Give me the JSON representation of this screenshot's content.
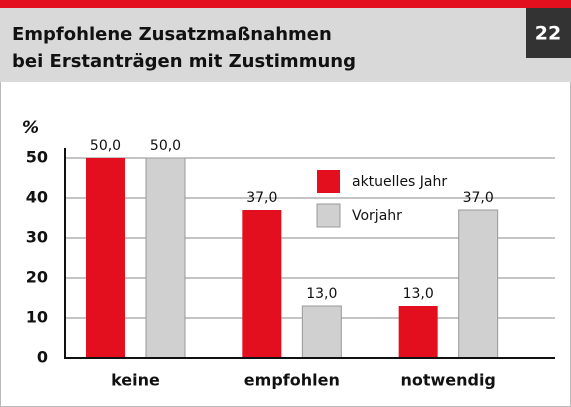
{
  "chart_data": {
    "type": "bar",
    "title": [
      "Empfohlene Zusatzmaßnahmen",
      "bei Erstanträgen mit Zustimmung"
    ],
    "page_number": 22,
    "y_label": "%",
    "categories": [
      "keine",
      "empfohlen",
      "notwendig"
    ],
    "series": [
      {
        "name": "aktuelles Jahr",
        "color": "#e30f1f",
        "values": [
          50,
          37,
          13
        ],
        "value_labels": [
          "50,0",
          "37,0",
          "13,0"
        ]
      },
      {
        "name": "Vorjahr",
        "color": "#d0d0d0",
        "values": [
          50,
          13,
          37
        ],
        "value_labels": [
          "50,0",
          "13,0",
          "37,0"
        ]
      }
    ],
    "ylim": [
      0,
      50
    ],
    "yticks": [
      0,
      10,
      20,
      30,
      40,
      50
    ],
    "grid": true
  }
}
